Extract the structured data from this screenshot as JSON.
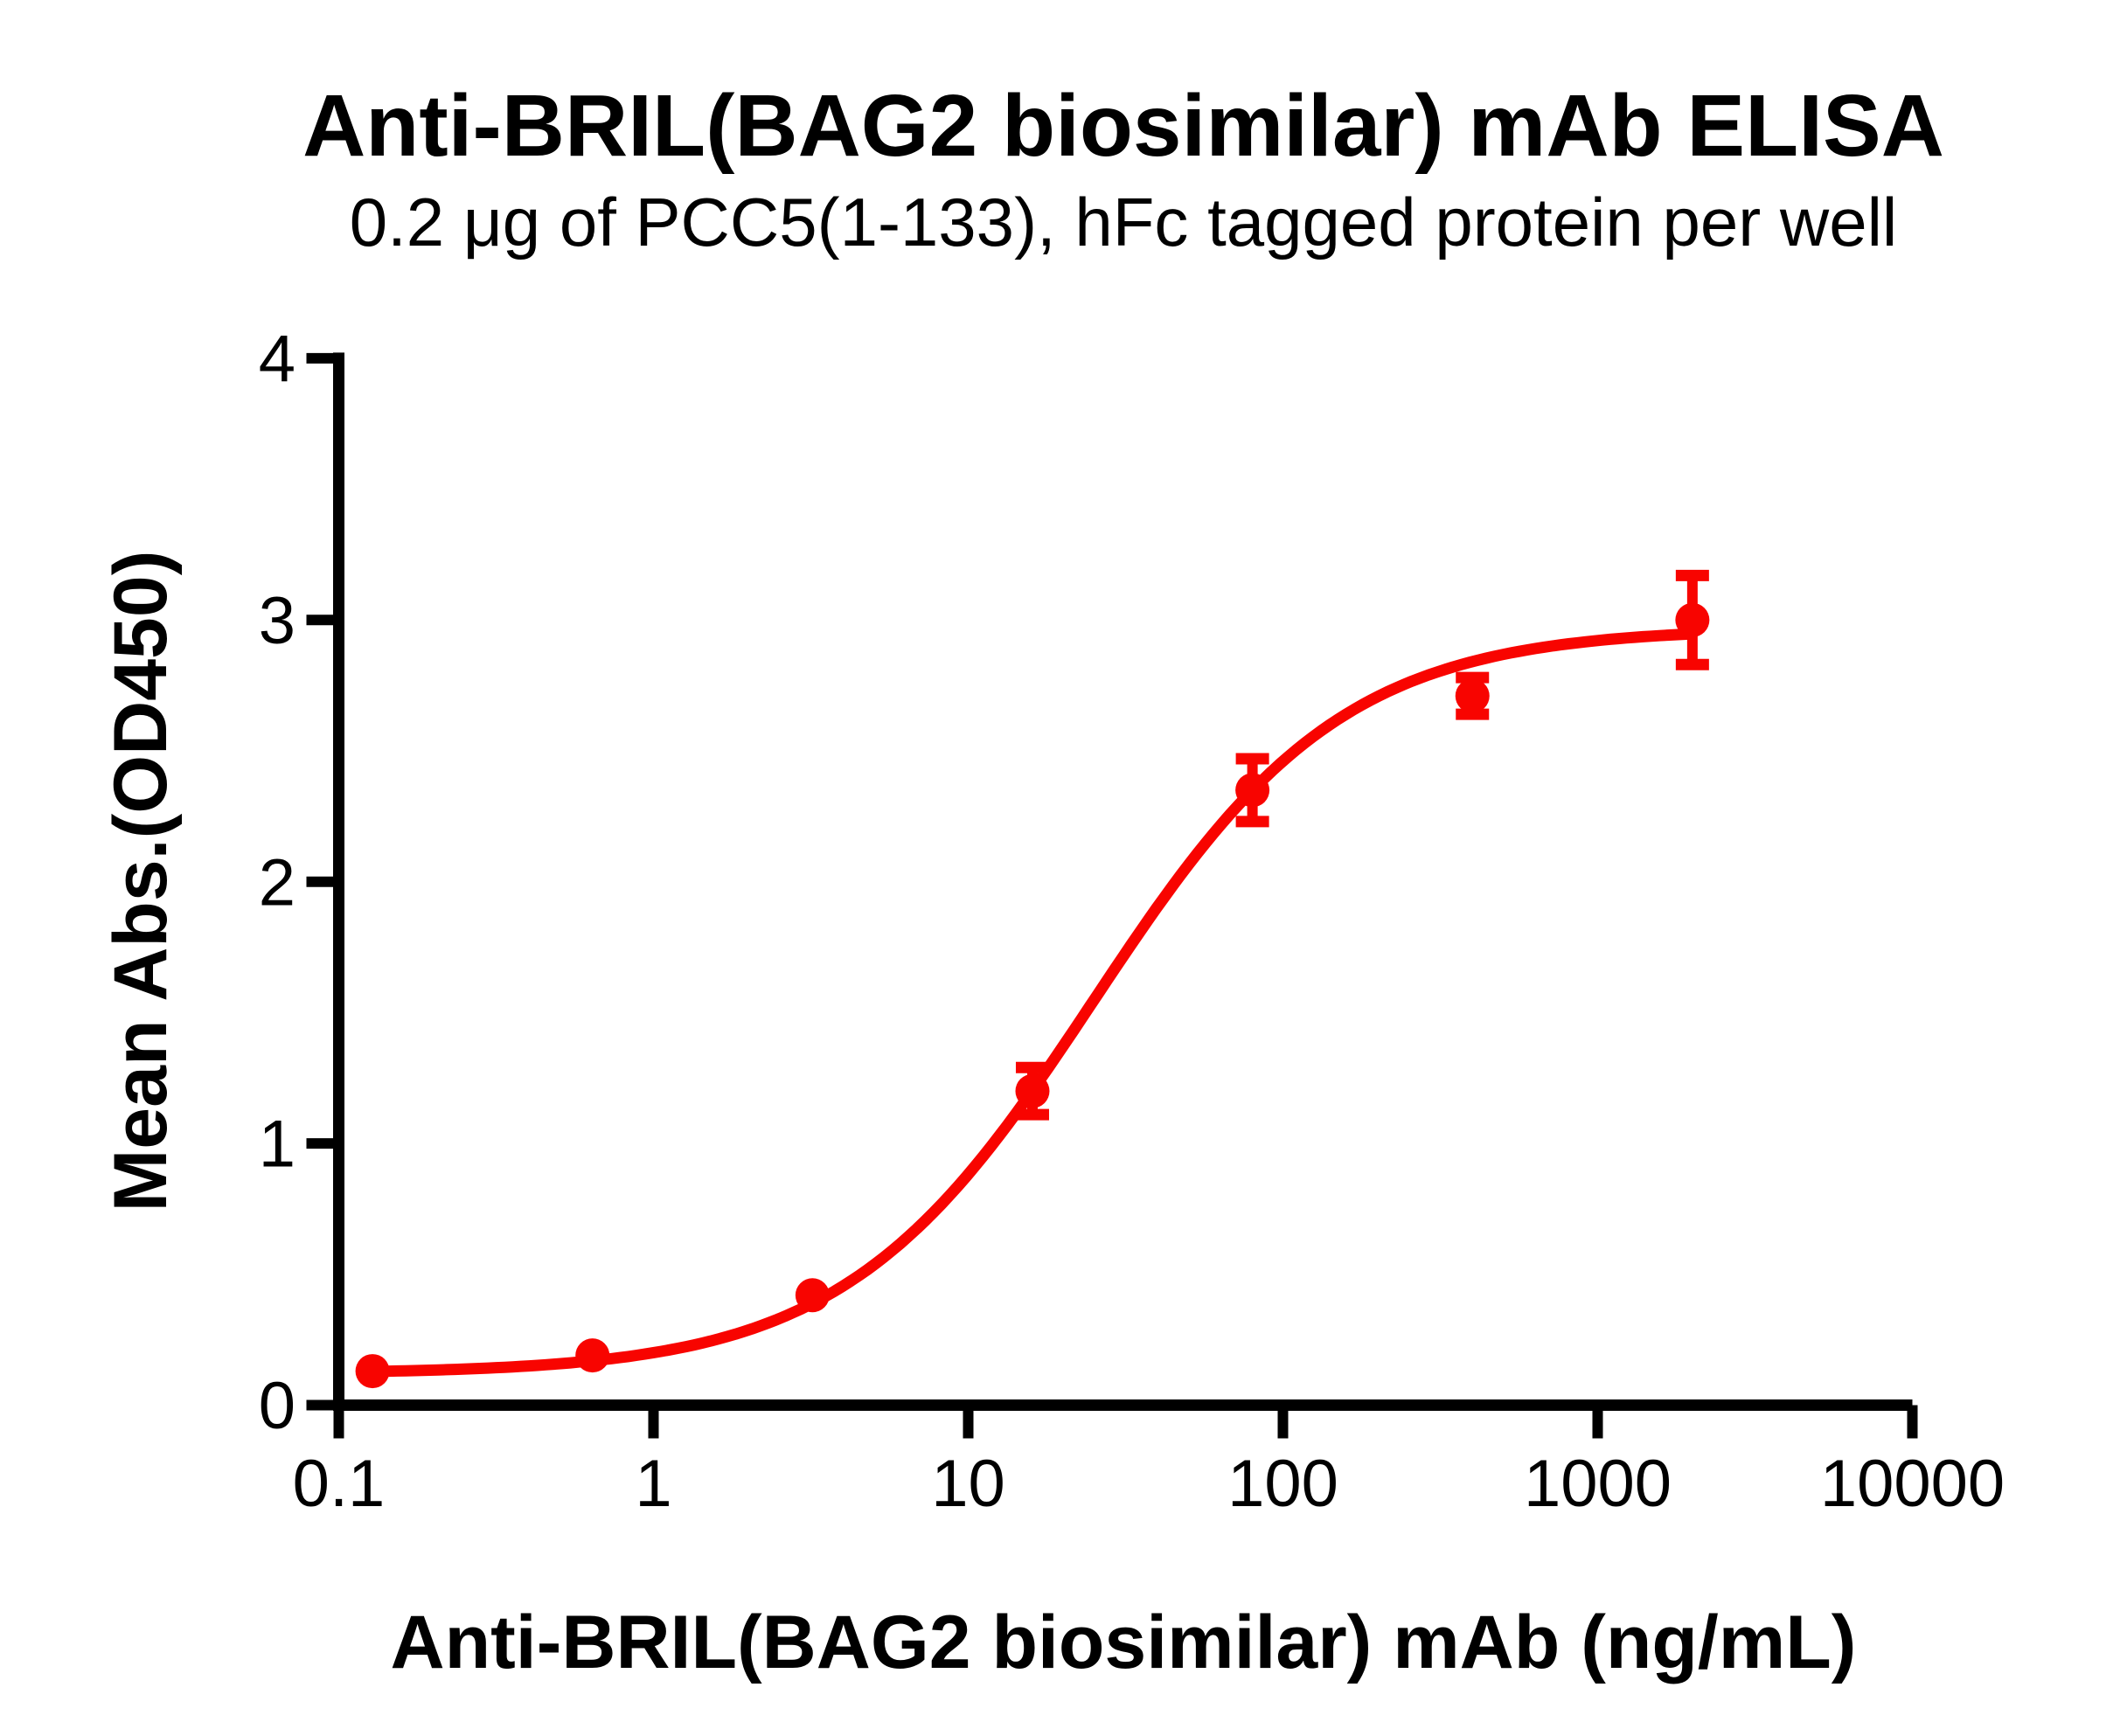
{
  "figure": {
    "background": "#ffffff"
  },
  "chart_data": {
    "type": "scatter",
    "title": "Anti-BRIL(BAG2 biosimilar) mAb ELISA",
    "subtitle": "0.2 μg of PCC5(1-133), hFc tagged protein per well",
    "xlabel": "Anti-BRIL(BAG2 biosimilar) mAb (ng/mL)",
    "ylabel": "Mean Abs.(OD450)",
    "x_scale": "log10",
    "xlim": [
      0.1,
      10000
    ],
    "ylim": [
      0,
      4
    ],
    "grid": false,
    "legend": "none",
    "axis_color": "#000000",
    "text_color": "#000000",
    "x_ticks": [
      {
        "value": 0.1,
        "label": "0.1"
      },
      {
        "value": 1,
        "label": "1"
      },
      {
        "value": 10,
        "label": "10"
      },
      {
        "value": 100,
        "label": "100"
      },
      {
        "value": 1000,
        "label": "1000"
      },
      {
        "value": 10000,
        "label": "10000"
      }
    ],
    "y_ticks": [
      {
        "value": 0,
        "label": "0"
      },
      {
        "value": 1,
        "label": "1"
      },
      {
        "value": 2,
        "label": "2"
      },
      {
        "value": 3,
        "label": "3"
      },
      {
        "value": 4,
        "label": "4"
      }
    ],
    "series": [
      {
        "name": "Anti-BRIL(BAG2 biosimilar) mAb",
        "marker": "circle",
        "color": "#f80400",
        "points": [
          {
            "x": 0.128,
            "y": 0.13,
            "err": 0
          },
          {
            "x": 0.64,
            "y": 0.19,
            "err": 0
          },
          {
            "x": 3.2,
            "y": 0.42,
            "err": 0
          },
          {
            "x": 16,
            "y": 1.2,
            "err": 0.09
          },
          {
            "x": 80,
            "y": 2.35,
            "err": 0.12
          },
          {
            "x": 400,
            "y": 2.71,
            "err": 0.07
          },
          {
            "x": 2000,
            "y": 3.0,
            "err": 0.17
          }
        ],
        "fit_curve": {
          "model": "4PL",
          "bottom": 0.12,
          "top": 2.97,
          "ec50_ng_ml": 25,
          "hill": 1.1,
          "x_start": 0.128,
          "x_end": 2000
        }
      }
    ]
  }
}
